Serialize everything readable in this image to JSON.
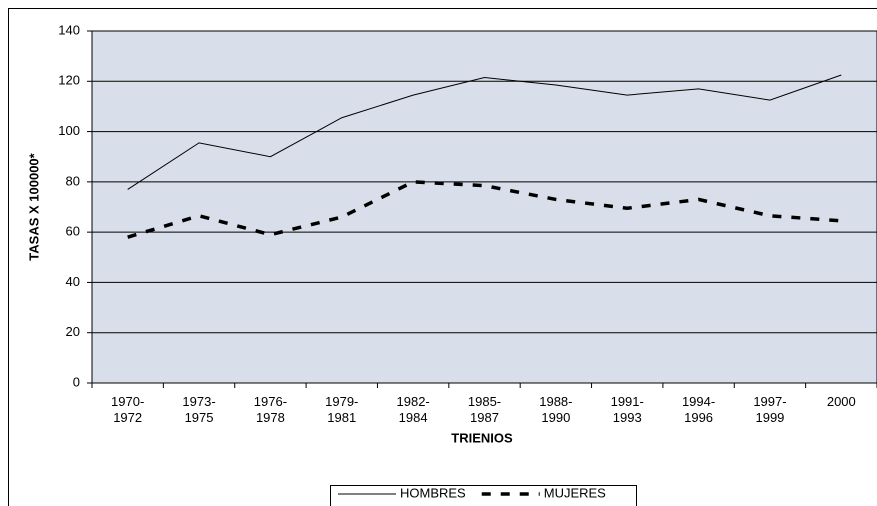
{
  "chart_data": {
    "type": "line",
    "categories": [
      "1970-\n1972",
      "1973-\n1975",
      "1976-\n1978",
      "1979-\n1981",
      "1982-\n1984",
      "1985-\n1987",
      "1988-\n1990",
      "1991-\n1993",
      "1994-\n1996",
      "1997-\n1999",
      "2000"
    ],
    "series": [
      {
        "name": "HOMBRES",
        "color": "#000000",
        "style": "solid",
        "values": [
          77,
          95.5,
          90,
          105.5,
          114.5,
          121.5,
          118.5,
          114.5,
          117,
          112.5,
          122.5
        ]
      },
      {
        "name": "MUJERES",
        "color": "#000000",
        "style": "dashed",
        "values": [
          58,
          66.5,
          59,
          66,
          80,
          78.5,
          73,
          69.5,
          73,
          66.5,
          64.5
        ]
      }
    ],
    "ylabel": "TASAS X 100000*",
    "xlabel": "TRIENIOS",
    "ylim": [
      0,
      140
    ],
    "yticks": [
      0,
      20,
      40,
      60,
      80,
      100,
      120,
      140
    ],
    "grid": true,
    "legend": "bottom",
    "plot_background": "#d9dfea"
  }
}
